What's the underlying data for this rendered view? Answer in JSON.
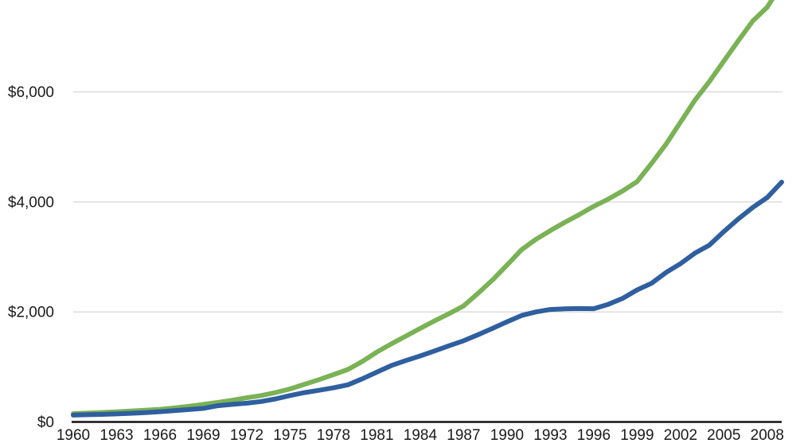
{
  "chart_data": {
    "type": "line",
    "title": "",
    "xlabel": "",
    "ylabel": "",
    "legend": "none",
    "grid": "horizontal",
    "xlim": [
      1960,
      2009
    ],
    "ylim": [
      0,
      7700
    ],
    "x": [
      1960,
      1961,
      1962,
      1963,
      1964,
      1965,
      1966,
      1967,
      1968,
      1969,
      1970,
      1971,
      1972,
      1973,
      1974,
      1975,
      1976,
      1977,
      1978,
      1979,
      1980,
      1981,
      1982,
      1983,
      1984,
      1985,
      1986,
      1987,
      1988,
      1989,
      1990,
      1991,
      1992,
      1993,
      1994,
      1995,
      1996,
      1997,
      1998,
      1999,
      2000,
      2001,
      2002,
      2003,
      2004,
      2005,
      2006,
      2007,
      2008,
      2009
    ],
    "series": [
      {
        "name": "green",
        "color": "#7ab255",
        "values": [
          150,
          160,
          172,
          185,
          200,
          214,
          230,
          255,
          285,
          320,
          355,
          395,
          440,
          480,
          535,
          600,
          685,
          770,
          860,
          955,
          1100,
          1270,
          1420,
          1560,
          1700,
          1840,
          1970,
          2110,
          2340,
          2580,
          2850,
          3130,
          3320,
          3480,
          3630,
          3770,
          3920,
          4050,
          4200,
          4370,
          4700,
          5050,
          5450,
          5850,
          6190,
          6560,
          6930,
          7290,
          7540,
          7960
        ]
      },
      {
        "name": "blue",
        "color": "#2f5f9f",
        "values": [
          125,
          132,
          138,
          146,
          157,
          170,
          186,
          205,
          225,
          247,
          295,
          320,
          342,
          372,
          420,
          480,
          534,
          575,
          620,
          675,
          785,
          905,
          1025,
          1117,
          1200,
          1292,
          1385,
          1476,
          1586,
          1700,
          1820,
          1935,
          2000,
          2045,
          2058,
          2062,
          2060,
          2138,
          2248,
          2400,
          2520,
          2718,
          2878,
          3068,
          3215,
          3460,
          3690,
          3900,
          4080,
          4360
        ]
      }
    ],
    "y_ticks": [
      {
        "label": "$0",
        "value": 0
      },
      {
        "label": "$2,000",
        "value": 2000
      },
      {
        "label": "$4,000",
        "value": 4000
      },
      {
        "label": "$6,000",
        "value": 6000
      }
    ],
    "x_tick_labels": [
      "1960",
      "1963",
      "1966",
      "1969",
      "1972",
      "1975",
      "1978",
      "1981",
      "1984",
      "1987",
      "1990",
      "1993",
      "1996",
      "1999",
      "2002",
      "2005",
      "2008"
    ],
    "colors": {
      "axis": "#111111",
      "gridline": "#d9d9d9",
      "tick_label": "#1a1a1a",
      "background": "#ffffff"
    }
  }
}
